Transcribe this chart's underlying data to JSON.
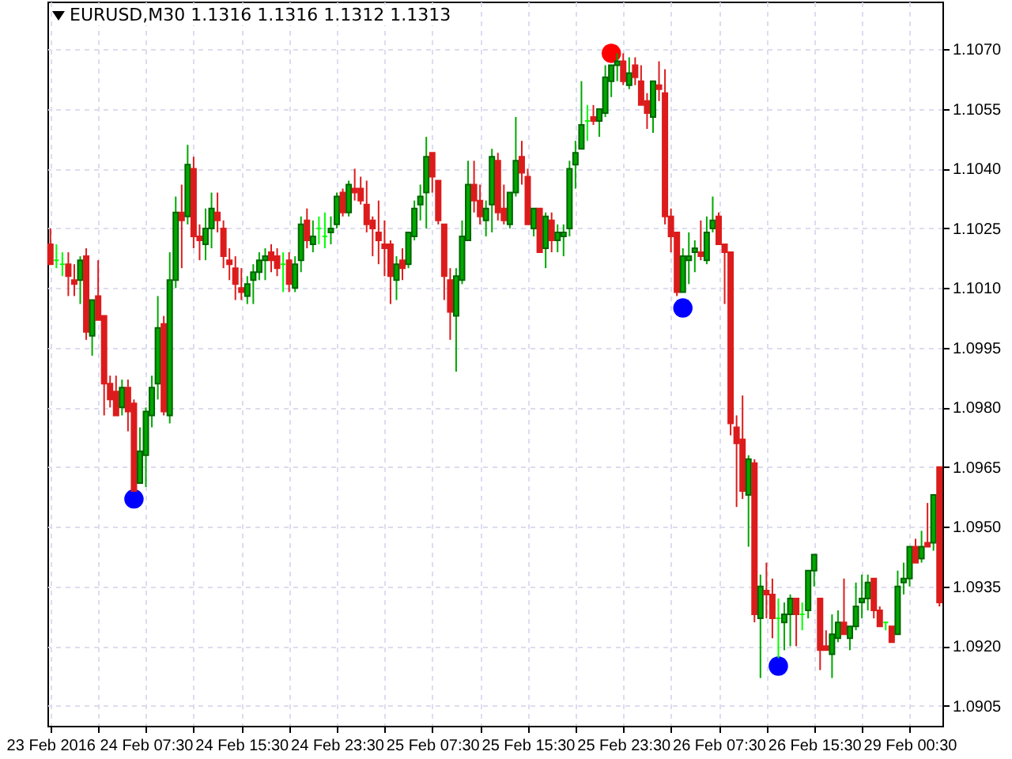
{
  "chart_data": {
    "type": "candlestick",
    "title": "EURUSD,M30 1.1316 1.1316 1.1312 1.1313",
    "categories": [
      "23 Feb 2016",
      null,
      null,
      null,
      null,
      null,
      null,
      null,
      null,
      null,
      null,
      null,
      null,
      null,
      null,
      null,
      "24 Feb 07:30",
      null,
      null,
      null,
      null,
      null,
      null,
      null,
      null,
      null,
      null,
      null,
      null,
      null,
      null,
      null,
      "24 Feb 15:30",
      null,
      null,
      null,
      null,
      null,
      null,
      null,
      null,
      null,
      null,
      null,
      null,
      null,
      null,
      null,
      "24 Feb 23:30",
      null,
      null,
      null,
      null,
      null,
      null,
      null,
      null,
      null,
      null,
      null,
      null,
      null,
      null,
      null,
      "25 Feb 07:30",
      null,
      null,
      null,
      null,
      null,
      null,
      null,
      null,
      null,
      null,
      null,
      null,
      null,
      null,
      null,
      "25 Feb 15:30",
      null,
      null,
      null,
      null,
      null,
      null,
      null,
      null,
      null,
      null,
      null,
      null,
      null,
      null,
      null,
      "25 Feb 23:30",
      null,
      null,
      null,
      null,
      null,
      null,
      null,
      null,
      null,
      null,
      null,
      null,
      null,
      null,
      null,
      "26 Feb 07:30",
      null,
      null,
      null,
      null,
      null,
      null,
      null,
      null,
      null,
      null,
      null,
      null,
      null,
      null,
      null,
      "26 Feb 15:30",
      null,
      null,
      null,
      null,
      null,
      null,
      null,
      null,
      null,
      null,
      null,
      null,
      null,
      null,
      null,
      "29 Feb 00:30",
      null,
      null,
      null,
      null,
      null
    ],
    "ohlc": [
      [
        1.1021,
        1.1025,
        1.1016,
        1.1016
      ],
      [
        1.1017,
        1.1021,
        1.1015,
        1.1017
      ],
      [
        1.1016,
        1.1019,
        1.1013,
        1.1016
      ],
      [
        1.1016,
        1.1019,
        1.1008,
        1.1013
      ],
      [
        1.1012,
        1.1016,
        1.1008,
        1.1011
      ],
      [
        1.1012,
        1.1018,
        1.1006,
        1.1017
      ],
      [
        1.1018,
        1.102,
        1.0997,
        1.0999
      ],
      [
        1.0998,
        1.1007,
        1.0993,
        1.1007
      ],
      [
        1.1008,
        1.1017,
        1.1002,
        1.1002
      ],
      [
        1.1003,
        1.1003,
        1.0978,
        1.0986
      ],
      [
        1.0986,
        1.0988,
        1.098,
        1.0982
      ],
      [
        1.0984,
        1.0988,
        1.0978,
        1.0978
      ],
      [
        1.098,
        1.0987,
        1.0978,
        1.0985
      ],
      [
        1.0985,
        1.0987,
        1.0974,
        1.0979
      ],
      [
        1.0981,
        1.0982,
        1.0959,
        1.0959
      ],
      [
        1.0961,
        1.0975,
        1.0961,
        1.0969
      ],
      [
        1.0968,
        1.098,
        1.096,
        1.0979
      ],
      [
        1.0978,
        1.0988,
        1.0975,
        1.0985
      ],
      [
        1.0986,
        1.1008,
        1.0982,
        1.1
      ],
      [
        1.1001,
        1.1003,
        1.0978,
        1.0979
      ],
      [
        1.0978,
        1.1019,
        1.0976,
        1.1012
      ],
      [
        1.1012,
        1.1033,
        1.101,
        1.1029
      ],
      [
        1.1029,
        1.1036,
        1.1015,
        1.1027
      ],
      [
        1.1028,
        1.1046,
        1.1026,
        1.1041
      ],
      [
        1.104,
        1.1043,
        1.102,
        1.1023
      ],
      [
        1.1023,
        1.1026,
        1.1017,
        1.1022
      ],
      [
        1.1021,
        1.103,
        1.1017,
        1.1025
      ],
      [
        1.1025,
        1.1034,
        1.102,
        1.103
      ],
      [
        1.1029,
        1.1034,
        1.1024,
        1.1027
      ],
      [
        1.1025,
        1.1027,
        1.1015,
        1.1018
      ],
      [
        1.1017,
        1.102,
        1.1012,
        1.1016
      ],
      [
        1.1015,
        1.1018,
        1.1007,
        1.1011
      ],
      [
        1.101,
        1.1015,
        1.1007,
        1.1009
      ],
      [
        1.1008,
        1.1013,
        1.1006,
        1.1011
      ],
      [
        1.1012,
        1.1016,
        1.1006,
        1.1014
      ],
      [
        1.1014,
        1.1019,
        1.1012,
        1.1017
      ],
      [
        1.1017,
        1.102,
        1.1012,
        1.1018
      ],
      [
        1.1019,
        1.1021,
        1.1014,
        1.1017
      ],
      [
        1.1018,
        1.102,
        1.1013,
        1.1015
      ],
      [
        1.1016,
        1.1019,
        1.1009,
        1.1016
      ],
      [
        1.1017,
        1.1019,
        1.1009,
        1.1011
      ],
      [
        1.101,
        1.1018,
        1.1009,
        1.1016
      ],
      [
        1.1017,
        1.1028,
        1.1014,
        1.1026
      ],
      [
        1.1027,
        1.103,
        1.102,
        1.1022
      ],
      [
        1.1021,
        1.1027,
        1.1019,
        1.1023
      ],
      [
        1.1025,
        1.1028,
        1.1021,
        1.1025
      ],
      [
        1.1023,
        1.1029,
        1.102,
        1.1023
      ],
      [
        1.1024,
        1.1028,
        1.1021,
        1.1025
      ],
      [
        1.1026,
        1.1034,
        1.1025,
        1.1033
      ],
      [
        1.1034,
        1.1035,
        1.1028,
        1.1029
      ],
      [
        1.1029,
        1.1037,
        1.1028,
        1.1036
      ],
      [
        1.1035,
        1.104,
        1.1032,
        1.1034
      ],
      [
        1.1035,
        1.1038,
        1.1031,
        1.1032
      ],
      [
        1.1031,
        1.1037,
        1.1024,
        1.1026
      ],
      [
        1.1027,
        1.1028,
        1.1018,
        1.1025
      ],
      [
        1.1024,
        1.1032,
        1.1016,
        1.1022
      ],
      [
        1.1021,
        1.1027,
        1.1013,
        1.102
      ],
      [
        1.1021,
        1.1022,
        1.1006,
        1.1013
      ],
      [
        1.1012,
        1.1018,
        1.1007,
        1.1016
      ],
      [
        1.1017,
        1.102,
        1.1012,
        1.1015
      ],
      [
        1.1016,
        1.1024,
        1.1015,
        1.1024
      ],
      [
        1.1023,
        1.1032,
        1.1022,
        1.103
      ],
      [
        1.1031,
        1.1036,
        1.1027,
        1.1033
      ],
      [
        1.1034,
        1.1048,
        1.1025,
        1.1043
      ],
      [
        1.1044,
        1.1044,
        1.1034,
        1.1038
      ],
      [
        1.1037,
        1.1037,
        1.1026,
        1.1027
      ],
      [
        1.1026,
        1.1026,
        1.1007,
        1.1013
      ],
      [
        1.1012,
        1.1015,
        1.0997,
        1.1004
      ],
      [
        1.1003,
        1.1015,
        1.0989,
        1.1013
      ],
      [
        1.1012,
        1.1027,
        1.1011,
        1.1023
      ],
      [
        1.1022,
        1.1042,
        1.1022,
        1.1036
      ],
      [
        1.1036,
        1.1042,
        1.1029,
        1.1032
      ],
      [
        1.1032,
        1.1036,
        1.1026,
        1.1028
      ],
      [
        1.1027,
        1.1032,
        1.1023,
        1.103
      ],
      [
        1.1031,
        1.1045,
        1.1024,
        1.1043
      ],
      [
        1.1042,
        1.1044,
        1.1027,
        1.1029
      ],
      [
        1.103,
        1.1036,
        1.1026,
        1.1027
      ],
      [
        1.1026,
        1.1034,
        1.1025,
        1.1034
      ],
      [
        1.1034,
        1.1053,
        1.1033,
        1.1042
      ],
      [
        1.1043,
        1.1047,
        1.1036,
        1.1039
      ],
      [
        1.1038,
        1.104,
        1.1026,
        1.1026
      ],
      [
        1.1025,
        1.103,
        1.1023,
        1.103
      ],
      [
        1.103,
        1.103,
        1.1019,
        1.1019
      ],
      [
        1.102,
        1.1029,
        1.1015,
        1.1028
      ],
      [
        1.1027,
        1.1029,
        1.1019,
        1.1022
      ],
      [
        1.1022,
        1.1026,
        1.1019,
        1.1024
      ],
      [
        1.1023,
        1.1026,
        1.1018,
        1.1024
      ],
      [
        1.1025,
        1.1042,
        1.1023,
        1.104
      ],
      [
        1.1041,
        1.1047,
        1.1035,
        1.1044
      ],
      [
        1.1045,
        1.1062,
        1.1045,
        1.1051
      ],
      [
        1.1052,
        1.1056,
        1.1047,
        1.1052
      ],
      [
        1.1053,
        1.1056,
        1.1051,
        1.1052
      ],
      [
        1.1052,
        1.1055,
        1.1048,
        1.1055
      ],
      [
        1.1054,
        1.1066,
        1.1053,
        1.1063
      ],
      [
        1.1062,
        1.1066,
        1.1058,
        1.1066
      ],
      [
        1.1066,
        1.1069,
        1.1062,
        1.1067
      ],
      [
        1.1067,
        1.1069,
        1.1061,
        1.1062
      ],
      [
        1.1061,
        1.1068,
        1.106,
        1.1064
      ],
      [
        1.1066,
        1.1068,
        1.1061,
        1.1063
      ],
      [
        1.1062,
        1.1066,
        1.1056,
        1.1056
      ],
      [
        1.1057,
        1.1059,
        1.105,
        1.1054
      ],
      [
        1.1053,
        1.1062,
        1.1049,
        1.1062
      ],
      [
        1.1061,
        1.1067,
        1.1057,
        1.106
      ],
      [
        1.1059,
        1.1065,
        1.1026,
        1.1028
      ],
      [
        1.1028,
        1.103,
        1.1019,
        1.1023
      ],
      [
        1.1024,
        1.1024,
        1.1008,
        1.1009
      ],
      [
        1.1009,
        1.102,
        1.1009,
        1.1018
      ],
      [
        1.1017,
        1.1024,
        1.1011,
        1.1018
      ],
      [
        1.1019,
        1.1022,
        1.1014,
        1.102
      ],
      [
        1.1019,
        1.1027,
        1.1017,
        1.1018
      ],
      [
        1.1017,
        1.1028,
        1.1016,
        1.1024
      ],
      [
        1.1025,
        1.1033,
        1.1024,
        1.1027
      ],
      [
        1.1028,
        1.1029,
        1.1021,
        1.1021
      ],
      [
        1.1021,
        1.1021,
        1.1006,
        1.1019
      ],
      [
        1.1019,
        1.1019,
        1.0973,
        1.0976
      ],
      [
        1.0975,
        1.0978,
        1.0955,
        1.0971
      ],
      [
        1.0972,
        1.0983,
        1.0957,
        1.0959
      ],
      [
        1.0958,
        1.0968,
        1.0945,
        1.0967
      ],
      [
        1.0966,
        1.0967,
        1.0926,
        1.0928
      ],
      [
        1.0927,
        1.0938,
        1.0912,
        1.0935
      ],
      [
        1.0934,
        1.0941,
        1.0927,
        1.0933
      ],
      [
        1.0933,
        1.0937,
        1.0922,
        1.0927
      ],
      [
        1.0927,
        1.0932,
        1.0917,
        1.0927
      ],
      [
        1.0926,
        1.0931,
        1.0919,
        1.0928
      ],
      [
        1.0928,
        1.0933,
        1.092,
        1.0932
      ],
      [
        1.0932,
        1.0932,
        1.092,
        1.0928
      ],
      [
        1.0928,
        1.0931,
        1.0924,
        1.0928
      ],
      [
        1.0929,
        1.0939,
        1.0927,
        1.0939
      ],
      [
        1.0939,
        1.0943,
        1.0935,
        1.0943
      ],
      [
        1.0932,
        1.0932,
        1.0914,
        1.0919
      ],
      [
        1.092,
        1.0924,
        1.0919,
        1.0919
      ],
      [
        1.0918,
        1.0928,
        1.0912,
        1.0923
      ],
      [
        1.0922,
        1.0929,
        1.0921,
        1.0926
      ],
      [
        1.0926,
        1.0937,
        1.0923,
        1.0923
      ],
      [
        1.0922,
        1.0925,
        1.0919,
        1.0925
      ],
      [
        1.0925,
        1.0936,
        1.0924,
        1.093
      ],
      [
        1.0931,
        1.0938,
        1.0927,
        1.0932
      ],
      [
        1.0932,
        1.0938,
        1.0929,
        1.0936
      ],
      [
        1.0937,
        1.0937,
        1.0927,
        1.0929
      ],
      [
        1.0929,
        1.093,
        1.0925,
        1.0925
      ],
      [
        1.0926,
        1.0926,
        1.0924,
        1.0926
      ],
      [
        1.0925,
        1.0925,
        1.0921,
        1.0921
      ],
      [
        1.0923,
        1.0939,
        1.0923,
        1.0935
      ],
      [
        1.0936,
        1.0941,
        1.0933,
        1.0937
      ],
      [
        1.0937,
        1.0945,
        1.0935,
        1.0945
      ],
      [
        1.0945,
        1.0947,
        1.0941,
        1.0941
      ],
      [
        1.0942,
        1.0949,
        1.0941,
        1.0945
      ],
      [
        1.0946,
        1.0956,
        1.0945,
        1.0945
      ],
      [
        1.0946,
        1.0958,
        1.0944,
        1.0958
      ],
      [
        1.0965,
        1.0965,
        1.093,
        1.0931
      ]
    ],
    "series": [
      {
        "type": "scatter",
        "color": "#0000ff",
        "values": [
          null,
          null,
          null,
          null,
          null,
          null,
          null,
          null,
          null,
          null,
          null,
          null,
          null,
          null,
          1.0957,
          null,
          null,
          null,
          null,
          null,
          null,
          null,
          null,
          null,
          null,
          null,
          null,
          null,
          null,
          null,
          null,
          null,
          null,
          null,
          null,
          null,
          null,
          null,
          null,
          null,
          null,
          null,
          null,
          null,
          null,
          null,
          null,
          null,
          null,
          null,
          null,
          null,
          null,
          null,
          null,
          null,
          null,
          null,
          null,
          null,
          null,
          null,
          null,
          null,
          null,
          null,
          null,
          null,
          null,
          null,
          null,
          null,
          null,
          null,
          null,
          null,
          null,
          null,
          null,
          null,
          null,
          null,
          null,
          null,
          null,
          null,
          null,
          null,
          null,
          null,
          null,
          null,
          null,
          null,
          null,
          null,
          null,
          null,
          null,
          null,
          null,
          null,
          null,
          null,
          null,
          null,
          1.1005,
          null,
          null,
          null,
          null,
          null,
          null,
          null,
          null,
          null,
          null,
          null,
          null,
          null,
          null,
          null,
          1.0915,
          null,
          null,
          null,
          null,
          null,
          null,
          null,
          null,
          null,
          null,
          null,
          null,
          null,
          null,
          null,
          null,
          null,
          null,
          null,
          null,
          null,
          null,
          null,
          null,
          null,
          null,
          null
        ]
      },
      {
        "type": "scatter",
        "color": "#ff0000",
        "values": [
          null,
          null,
          null,
          null,
          null,
          null,
          null,
          null,
          null,
          null,
          null,
          null,
          null,
          null,
          null,
          null,
          null,
          null,
          null,
          null,
          null,
          null,
          null,
          null,
          null,
          null,
          null,
          null,
          null,
          null,
          null,
          null,
          null,
          null,
          null,
          null,
          null,
          null,
          null,
          null,
          null,
          null,
          null,
          null,
          null,
          null,
          null,
          null,
          null,
          null,
          null,
          null,
          null,
          null,
          null,
          null,
          null,
          null,
          null,
          null,
          null,
          null,
          null,
          null,
          null,
          null,
          null,
          null,
          null,
          null,
          null,
          null,
          null,
          null,
          null,
          null,
          null,
          null,
          null,
          null,
          null,
          null,
          null,
          null,
          null,
          null,
          null,
          null,
          null,
          null,
          null,
          null,
          null,
          null,
          1.1069,
          null,
          null,
          null,
          null,
          null,
          null,
          null,
          null,
          null,
          null,
          null,
          null,
          null,
          null,
          null,
          null,
          null,
          null,
          null,
          null,
          null,
          null,
          null,
          null,
          null,
          null,
          null,
          null,
          null,
          null,
          null,
          null,
          null,
          null,
          null,
          null,
          null,
          null,
          null,
          null,
          null,
          null,
          null,
          null,
          null,
          null,
          null,
          null,
          null,
          null,
          null,
          null,
          null,
          null,
          null
        ]
      }
    ],
    "ylim": [
      1.09,
      1.1082
    ],
    "yticks": [
      {
        "value": 1.0905,
        "label": "1.0905"
      },
      {
        "value": 1.092,
        "label": "1.0920"
      },
      {
        "value": 1.0935,
        "label": "1.0935"
      },
      {
        "value": 1.095,
        "label": "1.0950"
      },
      {
        "value": 1.0965,
        "label": "1.0965"
      },
      {
        "value": 1.098,
        "label": "1.0980"
      },
      {
        "value": 1.0995,
        "label": "1.0995"
      },
      {
        "value": 1.101,
        "label": "1.1010"
      },
      {
        "value": 1.1025,
        "label": "1.1025"
      },
      {
        "value": 1.104,
        "label": "1.1040"
      },
      {
        "value": 1.1055,
        "label": "1.1055"
      },
      {
        "value": 1.107,
        "label": "1.1070"
      }
    ],
    "grid": true,
    "marker": "circle"
  }
}
